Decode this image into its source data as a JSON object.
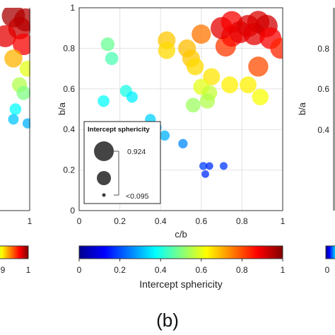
{
  "caption": "(b)",
  "chart_data": {
    "type": "scatter",
    "xlabel": "c/b",
    "ylabel": "b/a",
    "xlim": [
      0,
      1
    ],
    "ylim": [
      0,
      1
    ],
    "xticks": [
      "0",
      "0.2",
      "0.4",
      "0.6",
      "0.8",
      "1"
    ],
    "yticks": [
      "0",
      "0.2",
      "0.4",
      "0.6",
      "0.8",
      "1"
    ],
    "grid": true,
    "color_variable": "Intercept sphericity",
    "size_variable": "Intercept sphericity",
    "colormap": "jet",
    "colorbar": {
      "label": "Intercept sphericity",
      "range": [
        0,
        1
      ],
      "ticks": [
        "0",
        "0.2",
        "0.4",
        "0.6",
        "0.8",
        "1"
      ],
      "orientation": "horizontal",
      "position": "below"
    },
    "size_legend": {
      "title": "Intercept sphericity",
      "placement": "bottom-left",
      "labels": [
        "0.924",
        "<0.095"
      ]
    },
    "points": [
      {
        "x": 0.14,
        "y": 0.82,
        "s": 0.48
      },
      {
        "x": 0.16,
        "y": 0.75,
        "s": 0.45
      },
      {
        "x": 0.12,
        "y": 0.54,
        "s": 0.38
      },
      {
        "x": 0.23,
        "y": 0.59,
        "s": 0.4
      },
      {
        "x": 0.26,
        "y": 0.56,
        "s": 0.36
      },
      {
        "x": 0.35,
        "y": 0.45,
        "s": 0.33
      },
      {
        "x": 0.38,
        "y": 0.41,
        "s": 0.3
      },
      {
        "x": 0.42,
        "y": 0.37,
        "s": 0.3
      },
      {
        "x": 0.51,
        "y": 0.33,
        "s": 0.26
      },
      {
        "x": 0.61,
        "y": 0.22,
        "s": 0.19
      },
      {
        "x": 0.64,
        "y": 0.22,
        "s": 0.17
      },
      {
        "x": 0.71,
        "y": 0.22,
        "s": 0.18
      },
      {
        "x": 0.62,
        "y": 0.18,
        "s": 0.17
      },
      {
        "x": 0.43,
        "y": 0.84,
        "s": 0.68
      },
      {
        "x": 0.43,
        "y": 0.79,
        "s": 0.66
      },
      {
        "x": 0.53,
        "y": 0.8,
        "s": 0.69
      },
      {
        "x": 0.55,
        "y": 0.75,
        "s": 0.68
      },
      {
        "x": 0.57,
        "y": 0.71,
        "s": 0.66
      },
      {
        "x": 0.6,
        "y": 0.87,
        "s": 0.76
      },
      {
        "x": 0.65,
        "y": 0.66,
        "s": 0.65
      },
      {
        "x": 0.6,
        "y": 0.61,
        "s": 0.6
      },
      {
        "x": 0.64,
        "y": 0.58,
        "s": 0.57
      },
      {
        "x": 0.63,
        "y": 0.54,
        "s": 0.55
      },
      {
        "x": 0.56,
        "y": 0.52,
        "s": 0.53
      },
      {
        "x": 0.74,
        "y": 0.62,
        "s": 0.64
      },
      {
        "x": 0.83,
        "y": 0.62,
        "s": 0.64
      },
      {
        "x": 0.89,
        "y": 0.56,
        "s": 0.62
      },
      {
        "x": 0.72,
        "y": 0.81,
        "s": 0.82
      },
      {
        "x": 0.75,
        "y": 0.86,
        "s": 0.86
      },
      {
        "x": 0.7,
        "y": 0.9,
        "s": 0.9
      },
      {
        "x": 0.75,
        "y": 0.93,
        "s": 0.88
      },
      {
        "x": 0.79,
        "y": 0.88,
        "s": 0.9
      },
      {
        "x": 0.83,
        "y": 0.91,
        "s": 0.91
      },
      {
        "x": 0.86,
        "y": 0.87,
        "s": 0.9
      },
      {
        "x": 0.88,
        "y": 0.93,
        "s": 0.91
      },
      {
        "x": 0.92,
        "y": 0.91,
        "s": 0.92
      },
      {
        "x": 0.94,
        "y": 0.85,
        "s": 0.88
      },
      {
        "x": 0.88,
        "y": 0.71,
        "s": 0.8
      },
      {
        "x": 0.99,
        "y": 0.8,
        "s": 0.84
      }
    ]
  },
  "left_fragment": {
    "xticks": [
      "1"
    ],
    "colorbar_ticks": [
      "9",
      "1"
    ],
    "points": [
      {
        "x": 0.92,
        "y": 0.96,
        "s": 0.96
      },
      {
        "x": 0.95,
        "y": 0.9,
        "s": 0.93
      },
      {
        "x": 0.98,
        "y": 0.94,
        "s": 0.95
      },
      {
        "x": 0.88,
        "y": 0.86,
        "s": 0.9
      },
      {
        "x": 0.97,
        "y": 0.82,
        "s": 0.88
      },
      {
        "x": 0.92,
        "y": 0.75,
        "s": 0.7
      },
      {
        "x": 0.99,
        "y": 0.7,
        "s": 0.6
      },
      {
        "x": 0.95,
        "y": 0.62,
        "s": 0.55
      },
      {
        "x": 0.97,
        "y": 0.58,
        "s": 0.5
      },
      {
        "x": 0.93,
        "y": 0.5,
        "s": 0.38
      },
      {
        "x": 0.92,
        "y": 0.45,
        "s": 0.32
      },
      {
        "x": 0.99,
        "y": 0.43,
        "s": 0.3
      }
    ]
  },
  "right_fragment": {
    "ylabel": "b/a",
    "yticks": [
      "0.8",
      "0.6",
      "0.4"
    ],
    "colorbar_ticks": [
      "0"
    ]
  }
}
